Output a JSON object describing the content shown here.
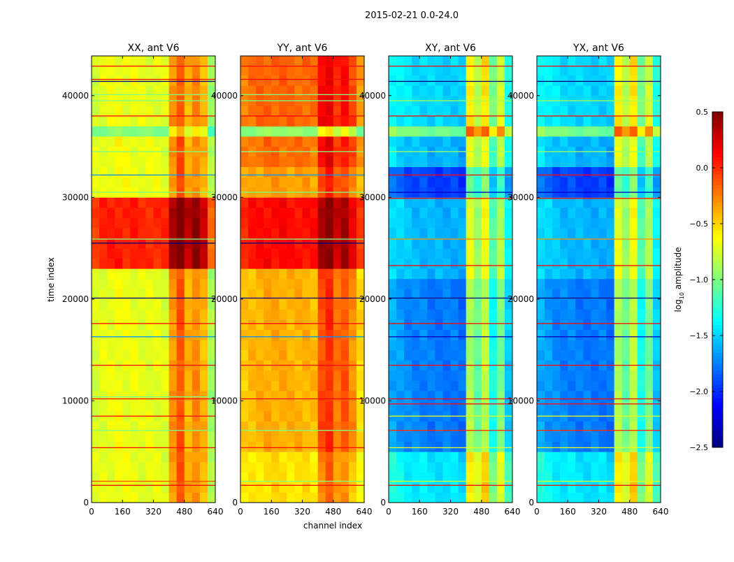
{
  "figure_title": "2015-02-21 0.0-24.0",
  "chart_data": {
    "type": "heatmap",
    "title": "2015-02-21 0.0-24.0",
    "xlabel": "channel index",
    "ylabel": "time index",
    "xlim": [
      0,
      640
    ],
    "ylim": [
      0,
      43900
    ],
    "xticks": [
      0,
      160,
      320,
      480,
      640
    ],
    "xtick_labels": [
      "0",
      "160",
      "320",
      "480",
      "640"
    ],
    "yticks": [
      0,
      10000,
      20000,
      30000,
      40000
    ],
    "ytick_labels": [
      "0",
      "10000",
      "20000",
      "30000",
      "40000"
    ],
    "colormap": "jet",
    "colorbar": {
      "range": [
        -2.5,
        0.5
      ],
      "ticks": [
        0.5,
        0.0,
        -0.5,
        -1.0,
        -1.5,
        -2.0,
        -2.5
      ],
      "tick_labels": [
        "0.5",
        "0.0",
        "−0.5",
        "−1.0",
        "−1.5",
        "−2.0",
        "−2.5"
      ],
      "label_main": "log",
      "label_sub": "10",
      "label_rest": " amplitude",
      "placement": "right"
    },
    "channel_bin_width": 40,
    "time_bin_width": 1000,
    "panels": [
      {
        "title": "XX, ant V6",
        "channel_profile": [
          -0.74,
          -0.7,
          -0.68,
          -0.66,
          -0.68,
          -0.68,
          -0.7,
          -0.7,
          -0.7,
          -0.72,
          -0.32,
          -0.12,
          -0.4,
          -0.28,
          -0.42,
          -0.88
        ],
        "time_offsets": [
          [
            0,
            23300,
            0
          ],
          [
            23300,
            30000,
            0.72
          ],
          [
            30000,
            36000,
            0.02
          ],
          [
            36000,
            37000,
            -0.3
          ],
          [
            37000,
            43900,
            0
          ]
        ],
        "lines": [
          [
            1700,
            0.1
          ],
          [
            2100,
            -0.1
          ],
          [
            5400,
            0.1
          ],
          [
            7100,
            -1.0
          ],
          [
            8500,
            0.1
          ],
          [
            10200,
            0.1
          ],
          [
            10400,
            -1.0
          ],
          [
            13500,
            0.1
          ],
          [
            16300,
            -1.7
          ],
          [
            17600,
            0.1
          ],
          [
            20100,
            -2.5
          ],
          [
            25500,
            -2.5
          ],
          [
            25900,
            -1.0
          ],
          [
            30500,
            -1.0
          ],
          [
            32200,
            -1.7
          ],
          [
            34500,
            -1.0
          ],
          [
            38000,
            0.1
          ],
          [
            39500,
            -1.0
          ],
          [
            40100,
            -1.0
          ],
          [
            41400,
            -2.5
          ],
          [
            41600,
            0.1
          ],
          [
            42900,
            0.1
          ]
        ]
      },
      {
        "title": "YY, ant V6",
        "channel_profile": [
          -0.46,
          -0.42,
          -0.4,
          -0.38,
          -0.38,
          -0.38,
          -0.4,
          -0.4,
          -0.4,
          -0.42,
          -0.1,
          0.0,
          -0.22,
          -0.12,
          -0.3,
          -0.52
        ],
        "time_offsets": [
          [
            0,
            5500,
            -0.15
          ],
          [
            5500,
            23300,
            0
          ],
          [
            23300,
            30000,
            0.5
          ],
          [
            30000,
            33000,
            0.05
          ],
          [
            33000,
            36000,
            0.2
          ],
          [
            36000,
            37000,
            -0.55
          ],
          [
            37000,
            43900,
            0.22
          ]
        ],
        "lines": [
          [
            1700,
            0.1
          ],
          [
            2100,
            -1.0
          ],
          [
            5400,
            0.1
          ],
          [
            7100,
            -1.0
          ],
          [
            10200,
            0.1
          ],
          [
            13500,
            0.1
          ],
          [
            16300,
            -1.7
          ],
          [
            17600,
            0.1
          ],
          [
            20100,
            -2.5
          ],
          [
            25500,
            -2.5
          ],
          [
            25900,
            -1.0
          ],
          [
            30500,
            -1.0
          ],
          [
            32200,
            -1.7
          ],
          [
            34500,
            -1.0
          ],
          [
            38000,
            0.1
          ],
          [
            39500,
            -1.0
          ],
          [
            40100,
            -1.0
          ],
          [
            41600,
            0.1
          ],
          [
            42900,
            0.1
          ]
        ]
      },
      {
        "title": "XY, ant V6",
        "channel_profile": [
          -1.5,
          -1.55,
          -1.6,
          -1.62,
          -1.62,
          -1.65,
          -1.65,
          -1.65,
          -1.65,
          -1.68,
          -0.75,
          -0.95,
          -0.7,
          -1.2,
          -0.9,
          -1.4
        ],
        "time_offsets": [
          [
            0,
            5500,
            0.2
          ],
          [
            5500,
            22000,
            -0.12
          ],
          [
            22000,
            30500,
            0.05
          ],
          [
            30500,
            33000,
            -0.3
          ],
          [
            33000,
            36000,
            0.05
          ],
          [
            36000,
            37000,
            0.6
          ],
          [
            37000,
            43900,
            0.15
          ]
        ],
        "lines": [
          [
            1700,
            0.1
          ],
          [
            2100,
            -0.7
          ],
          [
            5400,
            -0.7
          ],
          [
            7100,
            0.0
          ],
          [
            8500,
            -0.7
          ],
          [
            9700,
            0.1
          ],
          [
            10200,
            0.1
          ],
          [
            13500,
            0.1
          ],
          [
            16300,
            -2.3
          ],
          [
            17600,
            0.1
          ],
          [
            20100,
            -2.5
          ],
          [
            23300,
            0.1
          ],
          [
            25900,
            -0.3
          ],
          [
            29900,
            0.1
          ],
          [
            30500,
            -2.3
          ],
          [
            32200,
            0.1
          ],
          [
            34500,
            -0.9
          ],
          [
            38000,
            0.1
          ],
          [
            39500,
            -0.9
          ],
          [
            41400,
            -2.5
          ],
          [
            42900,
            0.1
          ]
        ]
      },
      {
        "title": "YX, ant V6",
        "channel_profile": [
          -1.5,
          -1.55,
          -1.6,
          -1.62,
          -1.62,
          -1.65,
          -1.65,
          -1.65,
          -1.65,
          -1.68,
          -0.75,
          -0.95,
          -0.7,
          -1.2,
          -0.9,
          -1.4
        ],
        "time_offsets": [
          [
            0,
            5500,
            0.2
          ],
          [
            5500,
            22000,
            -0.12
          ],
          [
            22000,
            30500,
            0.05
          ],
          [
            30500,
            33000,
            -0.3
          ],
          [
            33000,
            36000,
            0.05
          ],
          [
            36000,
            37000,
            0.6
          ],
          [
            37000,
            43900,
            0.15
          ]
        ],
        "lines": [
          [
            1700,
            0.1
          ],
          [
            2100,
            -0.7
          ],
          [
            5400,
            -0.7
          ],
          [
            7100,
            0.0
          ],
          [
            8500,
            -0.7
          ],
          [
            9700,
            0.1
          ],
          [
            10200,
            0.1
          ],
          [
            13500,
            0.1
          ],
          [
            16300,
            -2.3
          ],
          [
            17600,
            0.1
          ],
          [
            20100,
            -2.5
          ],
          [
            23300,
            0.1
          ],
          [
            25900,
            -0.3
          ],
          [
            29900,
            0.1
          ],
          [
            30500,
            -2.3
          ],
          [
            32200,
            0.1
          ],
          [
            34500,
            -0.9
          ],
          [
            38000,
            0.1
          ],
          [
            39500,
            -0.9
          ],
          [
            41400,
            -2.5
          ],
          [
            42900,
            0.1
          ]
        ]
      }
    ]
  }
}
